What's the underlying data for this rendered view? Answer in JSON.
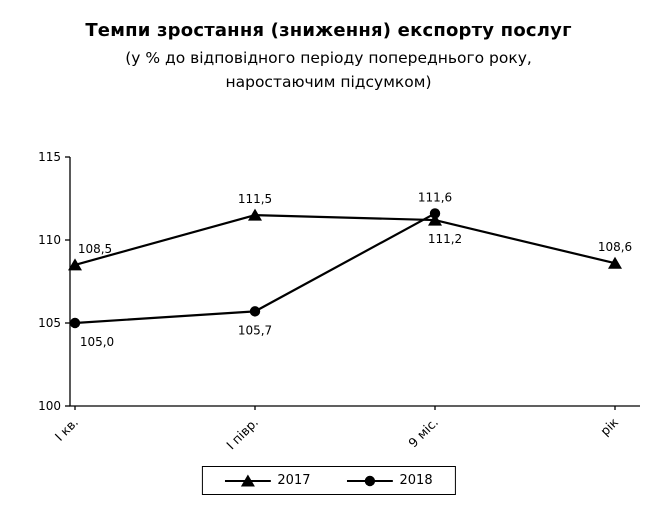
{
  "chart_data": {
    "type": "line",
    "title": "Темпи зростання (зниження) експорту послуг",
    "subtitle_lines": [
      "(у % до відповідного періоду попереднього року,",
      "наростаючим підсумком)"
    ],
    "categories": [
      "І кв.",
      "І півр.",
      "9 міс.",
      "рік"
    ],
    "ylim": [
      100,
      115
    ],
    "yticks": [
      100,
      105,
      110,
      115
    ],
    "grid": false,
    "legend_position": "bottom",
    "line_color": "#000000",
    "series": [
      {
        "name": "2017",
        "marker": "triangle",
        "values": [
          108.5,
          111.5,
          111.2,
          108.6
        ],
        "labels": [
          "108,5",
          "111,5",
          "111,2",
          "108,6"
        ],
        "label_positions": [
          "above",
          "above",
          "below",
          "above"
        ],
        "label_dx": [
          20,
          0,
          10,
          0
        ]
      },
      {
        "name": "2018",
        "marker": "circle",
        "values": [
          105.0,
          105.7,
          111.6,
          null
        ],
        "labels": [
          "105,0",
          "105,7",
          "111,6",
          null
        ],
        "label_positions": [
          "below",
          "below",
          "above",
          null
        ],
        "label_dx": [
          22,
          0,
          0,
          0
        ]
      }
    ]
  }
}
